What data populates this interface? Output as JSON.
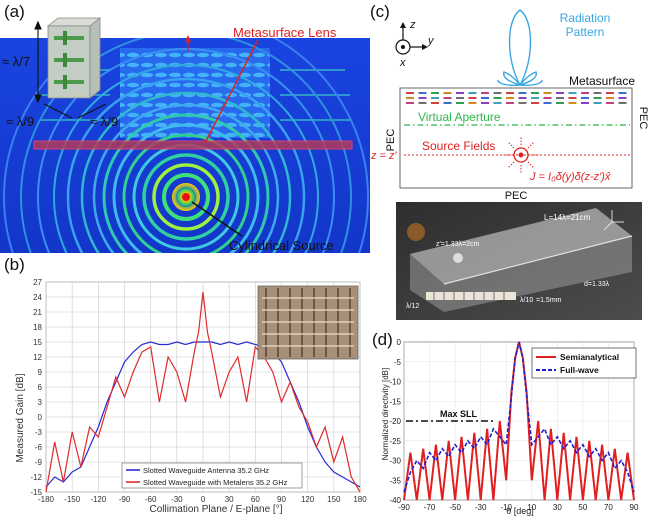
{
  "panel_a": {
    "label": "(a)",
    "dim_height": "≈ λ/7",
    "dim_depth": "≈ λ/9",
    "dim_width": "≈ λ/9",
    "callout_lens": "Metasurface Lens",
    "callout_source": "Cylindrical Source"
  },
  "panel_b": {
    "label": "(b)",
    "ylabel": "Measured Gain [dB]",
    "xlabel": "Collimation Plane / E-plane [°]",
    "x_ticks": [
      "-180",
      "-150",
      "-120",
      "-90",
      "-60",
      "-30",
      "0",
      "30",
      "60",
      "90",
      "120",
      "150",
      "180"
    ],
    "y_ticks": [
      "27",
      "24",
      "21",
      "18",
      "15",
      "12",
      "9",
      "6",
      "3",
      "0",
      "-3",
      "-6",
      "-9",
      "-12",
      "-15"
    ],
    "legend": [
      {
        "label": "Slotted Waveguide Antenna 35.2 GHz",
        "color": "#2b2bd6"
      },
      {
        "label": "Slotted Waveguide with Metalens 35.2 GHz",
        "color": "#e02a2a"
      }
    ]
  },
  "panel_c": {
    "label": "(c)",
    "axis_z": "z",
    "axis_y": "y",
    "axis_x": "x",
    "radiation_pattern": "Radiation\nPattern",
    "metasurface": "Metasurface",
    "pec_left": "PEC",
    "pec_right": "PEC",
    "pec_bottom": "PEC",
    "virtual_aperture": "Virtual Aperture",
    "z_eq": "z = z′",
    "source_fields": "Source Fields",
    "current_eq": "J = I₀δ(y)δ(z-z′)x̂",
    "photo_L": "L=14λ=21cm",
    "photo_zp": "z′=1.33λ=2cm",
    "photo_d": "d=1.33λ",
    "photo_lambda12": "λ/12",
    "photo_lambda10": "λ/10",
    "photo_mm": "=1.5mm"
  },
  "panel_d": {
    "label": "(d)",
    "ylabel": "Normalized directivity [dB]",
    "xlabel": "θ [deg]",
    "max_sll": "Max SLL",
    "x_ticks": [
      "-90",
      "-70",
      "-50",
      "-30",
      "-10",
      "10",
      "30",
      "50",
      "70",
      "90"
    ],
    "y_ticks": [
      "0",
      "-5",
      "-10",
      "-15",
      "-20",
      "-25",
      "-30",
      "-35",
      "-40"
    ],
    "legend": [
      {
        "label": "Semianalytical",
        "color": "#e02020"
      },
      {
        "label": "Full-wave",
        "color": "#2020d0"
      }
    ]
  },
  "chart_data": [
    {
      "type": "line",
      "title": "",
      "xlabel": "Collimation Plane / E-plane [°]",
      "ylabel": "Measured Gain [dB]",
      "xlim": [
        -180,
        180
      ],
      "ylim": [
        -15,
        27
      ],
      "grid": true,
      "legend_position": "bottom-left",
      "series": [
        {
          "name": "Slotted Waveguide Antenna 35.2 GHz",
          "color": "#2b2bd6",
          "x": [
            -180,
            -170,
            -160,
            -150,
            -140,
            -130,
            -120,
            -110,
            -100,
            -90,
            -80,
            -70,
            -60,
            -50,
            -40,
            -30,
            -20,
            -10,
            0,
            10,
            20,
            30,
            40,
            50,
            60,
            70,
            80,
            90,
            100,
            110,
            120,
            130,
            140,
            150,
            160,
            170,
            180
          ],
          "y": [
            -14,
            -12,
            -13,
            -11,
            -10,
            -6,
            -2,
            3,
            7,
            11,
            13,
            14.5,
            15,
            14.5,
            14.5,
            15,
            14.5,
            15,
            15,
            15,
            14.5,
            15,
            14.5,
            15,
            14.5,
            14,
            13,
            11,
            7,
            3,
            -2,
            -6,
            -9,
            -11,
            -12,
            -13,
            -14
          ]
        },
        {
          "name": "Slotted Waveguide with Metalens 35.2 GHz",
          "color": "#e02a2a",
          "x": [
            -180,
            -170,
            -160,
            -150,
            -140,
            -130,
            -120,
            -110,
            -100,
            -90,
            -80,
            -70,
            -60,
            -50,
            -40,
            -30,
            -20,
            -10,
            -5,
            0,
            5,
            10,
            20,
            30,
            40,
            50,
            60,
            70,
            80,
            90,
            100,
            110,
            120,
            130,
            140,
            150,
            160,
            170,
            180
          ],
          "y": [
            -15,
            -5,
            -13,
            -3,
            -10,
            -2,
            -4,
            2,
            8,
            4,
            9,
            13,
            14,
            3,
            12,
            9,
            3,
            13,
            17,
            25,
            17,
            13,
            4,
            9,
            12,
            3,
            14,
            12,
            9,
            3,
            7,
            2,
            -1,
            -6,
            -2,
            -9,
            -4,
            -12,
            -15
          ]
        }
      ]
    },
    {
      "type": "line",
      "title": "",
      "xlabel": "θ [deg]",
      "ylabel": "Normalized directivity [dB]",
      "xlim": [
        -90,
        90
      ],
      "ylim": [
        -40,
        0
      ],
      "grid": true,
      "legend_position": "top-right",
      "annotations": [
        {
          "text": "Max SLL",
          "y": -20
        }
      ],
      "series": [
        {
          "name": "Semianalytical",
          "color": "#e02020",
          "x": [
            -90,
            -85,
            -80,
            -75,
            -70,
            -65,
            -60,
            -55,
            -50,
            -45,
            -40,
            -35,
            -30,
            -25,
            -20,
            -15,
            -10,
            -6,
            -3,
            0,
            3,
            6,
            10,
            15,
            20,
            25,
            30,
            35,
            40,
            45,
            50,
            55,
            60,
            65,
            70,
            75,
            80,
            85,
            90
          ],
          "y": [
            -40,
            -28,
            -40,
            -27,
            -40,
            -26,
            -40,
            -25,
            -40,
            -24,
            -40,
            -23,
            -40,
            -22,
            -40,
            -20,
            -35,
            -13,
            -4,
            0,
            -4,
            -13,
            -35,
            -20,
            -40,
            -22,
            -40,
            -23,
            -40,
            -24,
            -40,
            -25,
            -40,
            -26,
            -40,
            -27,
            -40,
            -28,
            -40
          ]
        },
        {
          "name": "Full-wave",
          "color": "#2020d0",
          "x": [
            -90,
            -85,
            -80,
            -75,
            -70,
            -65,
            -60,
            -55,
            -50,
            -45,
            -40,
            -35,
            -30,
            -25,
            -20,
            -15,
            -10,
            -6,
            -3,
            0,
            3,
            6,
            10,
            15,
            20,
            25,
            30,
            35,
            40,
            45,
            50,
            55,
            60,
            65,
            70,
            75,
            80,
            85,
            90
          ],
          "y": [
            -38,
            -33,
            -30,
            -32,
            -28,
            -30,
            -27,
            -29,
            -26,
            -28,
            -25,
            -27,
            -24,
            -26,
            -22,
            -24,
            -26,
            -14,
            -4,
            0,
            -4,
            -14,
            -26,
            -24,
            -22,
            -26,
            -24,
            -27,
            -25,
            -28,
            -26,
            -29,
            -27,
            -30,
            -28,
            -32,
            -30,
            -33,
            -38
          ]
        }
      ]
    }
  ]
}
